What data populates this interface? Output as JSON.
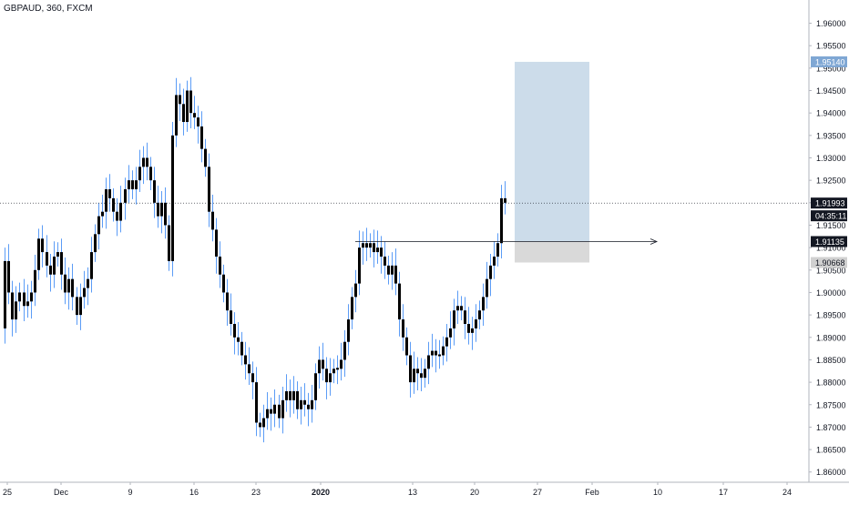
{
  "header": {
    "symbol": "GBPAUD, 360, FXCM"
  },
  "chart_data": {
    "type": "candlestick",
    "title": "GBPAUD, 360, FXCM",
    "ylim": [
      1.8565,
      1.9642
    ],
    "y_ticks": [
      "1.96000",
      "1.95500",
      "1.95000",
      "1.94500",
      "1.94000",
      "1.93500",
      "1.93000",
      "1.92500",
      "1.92000",
      "1.91500",
      "1.91000",
      "1.90500",
      "1.90000",
      "1.89500",
      "1.89000",
      "1.88500",
      "1.88000",
      "1.87500",
      "1.87000",
      "1.86500",
      "1.86000"
    ],
    "x_ticks": [
      "25",
      "Dec",
      "9",
      "16",
      "23",
      "2020",
      "13",
      "20",
      "27",
      "Feb",
      "10",
      "17",
      "24"
    ],
    "grid": false,
    "price_labels": {
      "target": "1.95140",
      "current": "1.91993",
      "countdown": "04:35:11",
      "entry": "1.91135",
      "stop": "1.90668"
    },
    "position_box": {
      "entry": 1.91135,
      "target": 1.9514,
      "stop": 1.90668
    },
    "current_price": 1.91993,
    "colors": {
      "candle": "#000000",
      "wick": "#5b9cf6",
      "target_zone": "#ccdcea",
      "stop_zone": "#d9d9d9",
      "label_bg": "#131722",
      "target_label_bg": "#7fa7d4",
      "stop_label_bg": "#d0d0d0"
    },
    "close_path": [
      [
        0,
        1.892
      ],
      [
        4,
        1.907
      ],
      [
        8,
        1.9
      ],
      [
        12,
        1.894
      ],
      [
        16,
        1.898
      ],
      [
        20,
        1.9
      ],
      [
        25,
        1.897
      ],
      [
        29,
        1.898
      ],
      [
        33,
        1.9
      ],
      [
        37,
        1.905
      ],
      [
        41,
        1.912
      ],
      [
        45,
        1.909
      ],
      [
        50,
        1.906
      ],
      [
        54,
        1.904
      ],
      [
        58,
        1.908
      ],
      [
        62,
        1.909
      ],
      [
        66,
        1.904
      ],
      [
        70,
        1.9
      ],
      [
        74,
        1.903
      ],
      [
        78,
        1.899
      ],
      [
        83,
        1.895
      ],
      [
        87,
        1.899
      ],
      [
        91,
        1.901
      ],
      [
        95,
        1.903
      ],
      [
        99,
        1.909
      ],
      [
        103,
        1.913
      ],
      [
        107,
        1.917
      ],
      [
        111,
        1.918
      ],
      [
        115,
        1.923
      ],
      [
        119,
        1.921
      ],
      [
        123,
        1.918
      ],
      [
        127,
        1.916
      ],
      [
        131,
        1.92
      ],
      [
        136,
        1.923
      ],
      [
        140,
        1.925
      ],
      [
        144,
        1.923
      ],
      [
        148,
        1.925
      ],
      [
        152,
        1.928
      ],
      [
        156,
        1.93
      ],
      [
        160,
        1.928
      ],
      [
        164,
        1.925
      ],
      [
        168,
        1.92
      ],
      [
        172,
        1.917
      ],
      [
        176,
        1.92
      ],
      [
        180,
        1.915
      ],
      [
        184,
        1.907
      ],
      [
        188,
        1.935
      ],
      [
        192,
        1.944
      ],
      [
        196,
        1.942
      ],
      [
        200,
        1.938
      ],
      [
        204,
        1.945
      ],
      [
        208,
        1.94
      ],
      [
        212,
        1.939
      ],
      [
        216,
        1.937
      ],
      [
        220,
        1.932
      ],
      [
        224,
        1.928
      ],
      [
        228,
        1.918
      ],
      [
        232,
        1.914
      ],
      [
        236,
        1.908
      ],
      [
        240,
        1.904
      ],
      [
        244,
        1.9
      ],
      [
        248,
        1.896
      ],
      [
        252,
        1.893
      ],
      [
        256,
        1.89
      ],
      [
        260,
        1.889
      ],
      [
        264,
        1.886
      ],
      [
        268,
        1.884
      ],
      [
        272,
        1.882
      ],
      [
        276,
        1.88
      ],
      [
        280,
        1.871
      ],
      [
        284,
        1.87
      ],
      [
        288,
        1.872
      ],
      [
        292,
        1.874
      ],
      [
        296,
        1.873
      ],
      [
        300,
        1.875
      ],
      [
        305,
        1.872
      ],
      [
        309,
        1.876
      ],
      [
        313,
        1.878
      ],
      [
        317,
        1.876
      ],
      [
        321,
        1.878
      ],
      [
        325,
        1.874
      ],
      [
        329,
        1.876
      ],
      [
        333,
        1.875
      ],
      [
        337,
        1.874
      ],
      [
        341,
        1.876
      ],
      [
        345,
        1.882
      ],
      [
        349,
        1.885
      ],
      [
        353,
        1.883
      ],
      [
        357,
        1.88
      ],
      [
        361,
        1.882
      ],
      [
        365,
        1.883
      ],
      [
        369,
        1.883
      ],
      [
        373,
        1.885
      ],
      [
        377,
        1.889
      ],
      [
        381,
        1.894
      ],
      [
        385,
        1.899
      ],
      [
        389,
        1.902
      ],
      [
        393,
        1.91
      ],
      [
        397,
        1.911
      ],
      [
        401,
        1.91
      ],
      [
        405,
        1.911
      ],
      [
        409,
        1.909
      ],
      [
        413,
        1.91
      ],
      [
        417,
        1.908
      ],
      [
        421,
        1.906
      ],
      [
        425,
        1.904
      ],
      [
        429,
        1.906
      ],
      [
        433,
        1.902
      ],
      [
        437,
        1.894
      ],
      [
        441,
        1.89
      ],
      [
        445,
        1.886
      ],
      [
        449,
        1.88
      ],
      [
        453,
        1.883
      ],
      [
        457,
        1.882
      ],
      [
        461,
        1.881
      ],
      [
        465,
        1.883
      ],
      [
        469,
        1.886
      ],
      [
        473,
        1.887
      ],
      [
        477,
        1.886
      ],
      [
        481,
        1.886
      ],
      [
        485,
        1.888
      ],
      [
        489,
        1.89
      ],
      [
        493,
        1.892
      ],
      [
        497,
        1.896
      ],
      [
        501,
        1.897
      ],
      [
        505,
        1.896
      ],
      [
        509,
        1.893
      ],
      [
        513,
        1.891
      ],
      [
        517,
        1.892
      ],
      [
        521,
        1.894
      ],
      [
        525,
        1.896
      ],
      [
        529,
        1.899
      ],
      [
        533,
        1.903
      ],
      [
        537,
        1.906
      ],
      [
        541,
        1.908
      ],
      [
        545,
        1.911
      ],
      [
        549,
        1.921
      ],
      [
        553,
        1.92
      ]
    ]
  }
}
